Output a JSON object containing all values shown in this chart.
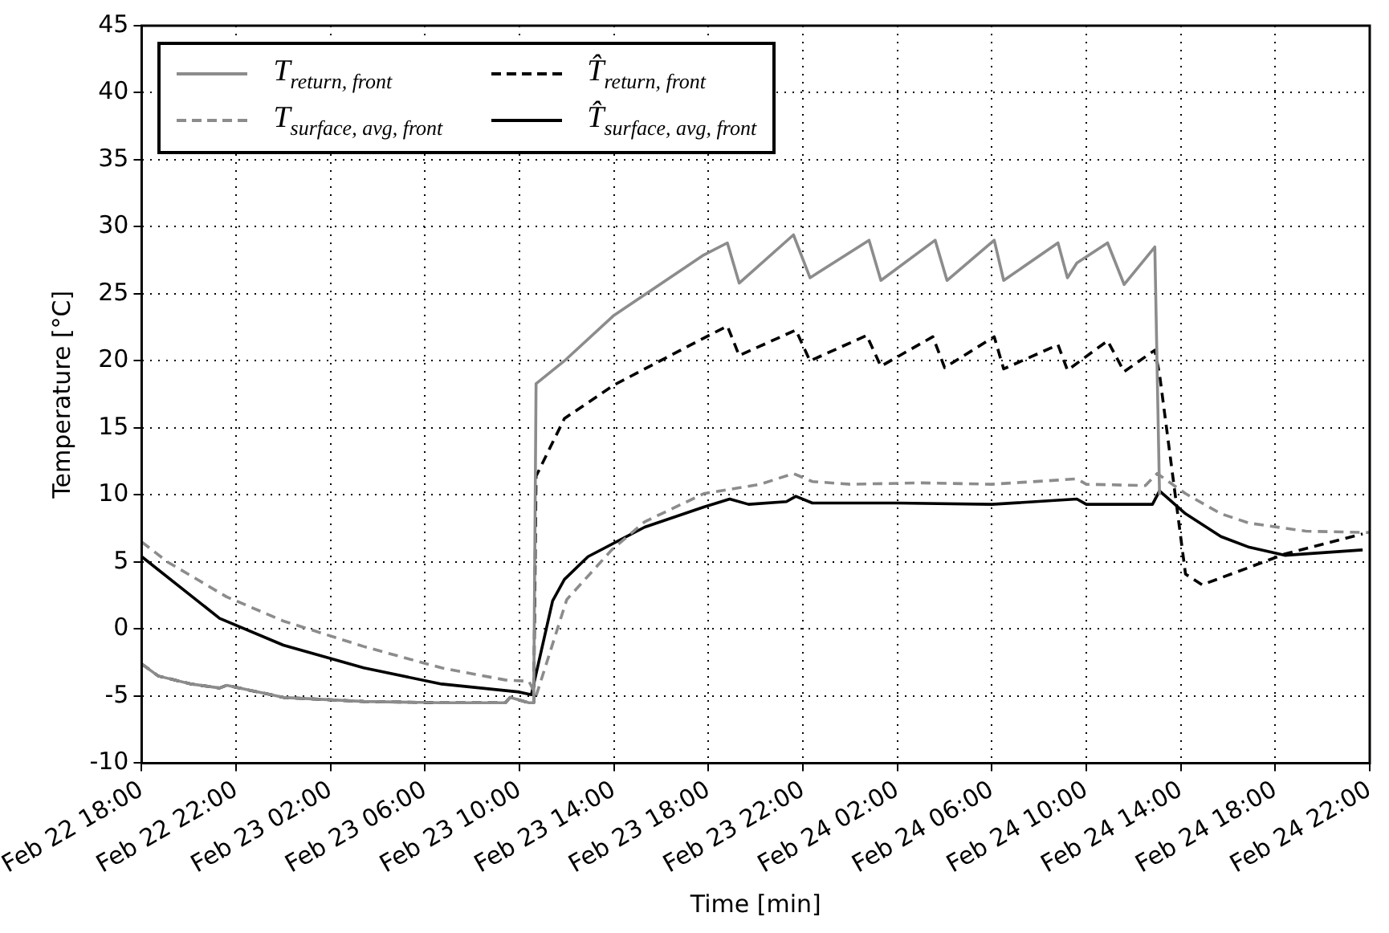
{
  "chart_data": {
    "type": "line",
    "xlabel": "Time [min]",
    "ylabel": "Temperature [°C]",
    "xlim": [
      "--02-22T18:00",
      "--02-24T22:00"
    ],
    "xticks": [
      {
        "value": "--02-22T18:00",
        "label": "Feb 22 18:00"
      },
      {
        "value": "--02-22T22:00",
        "label": "Feb 22 22:00"
      },
      {
        "value": "--02-23T02:00",
        "label": "Feb 23 02:00"
      },
      {
        "value": "--02-23T06:00",
        "label": "Feb 23 06:00"
      },
      {
        "value": "--02-23T10:00",
        "label": "Feb 23 10:00"
      },
      {
        "value": "--02-23T14:00",
        "label": "Feb 23 14:00"
      },
      {
        "value": "--02-23T18:00",
        "label": "Feb 23 18:00"
      },
      {
        "value": "--02-23T22:00",
        "label": "Feb 23 22:00"
      },
      {
        "value": "--02-24T02:00",
        "label": "Feb 24 02:00"
      },
      {
        "value": "--02-24T06:00",
        "label": "Feb 24 06:00"
      },
      {
        "value": "--02-24T10:00",
        "label": "Feb 24 10:00"
      },
      {
        "value": "--02-24T14:00",
        "label": "Feb 24 14:00"
      },
      {
        "value": "--02-24T18:00",
        "label": "Feb 24 18:00"
      },
      {
        "value": "--02-24T22:00",
        "label": "Feb 24 22:00"
      }
    ],
    "ylim": [
      -10,
      45
    ],
    "yticks": [
      -10,
      -5,
      0,
      5,
      10,
      15,
      20,
      25,
      30,
      35,
      40,
      45
    ],
    "grid": true,
    "legend": "top left",
    "series": [
      {
        "name": "T$_{return, front}$",
        "color": "#8c8c8c",
        "line_style": "solid",
        "x": [
          "--02-22T18:00",
          "--02-22T18:42",
          "--02-22T20:06",
          "--02-22T21:18",
          "--02-22T21:36",
          "--02-23T00:00",
          "--02-23T03:24",
          "--02-23T06:42",
          "--02-23T09:24",
          "--02-23T09:36",
          "--02-23T10:24",
          "--02-23T10:36",
          "--02-23T10:42",
          "--02-23T11:54",
          "--02-23T14:00",
          "--02-23T17:48",
          "--02-23T18:48",
          "--02-23T19:18",
          "--02-23T21:36",
          "--02-23T22:18",
          "--02-24T00:48",
          "--02-24T01:18",
          "--02-24T03:36",
          "--02-24T04:06",
          "--02-24T06:06",
          "--02-24T06:30",
          "--02-24T08:48",
          "--02-24T09:12",
          "--02-24T09:36",
          "--02-24T10:54",
          "--02-24T11:36",
          "--02-24T12:54",
          "--02-24T13:06"
        ],
        "values": [
          -2.6,
          -3.5,
          -4.1,
          -4.4,
          -4.2,
          -5.1,
          -5.4,
          -5.5,
          -5.5,
          -5.1,
          -5.5,
          -5.5,
          18.3,
          20,
          23.4,
          27.9,
          28.8,
          25.8,
          29.4,
          26.2,
          29,
          26,
          29,
          26,
          29,
          26,
          28.8,
          26.2,
          27.3,
          28.8,
          25.7,
          28.5,
          10
        ]
      },
      {
        "name": "T$_{surface, avg, front}$",
        "color": "#8c8c8c",
        "line_style": "dashed",
        "x": [
          "--02-22T18:00",
          "--02-22T19:06",
          "--02-22T21:36",
          "--02-23T00:00",
          "--02-23T03:24",
          "--02-23T06:42",
          "--02-23T09:24",
          "--02-23T10:24",
          "--02-23T10:36",
          "--02-23T10:42",
          "--02-23T12:00",
          "--02-23T13:54",
          "--02-23T15:18",
          "--02-23T17:48",
          "--02-23T20:12",
          "--02-23T21:36",
          "--02-23T22:24",
          "--02-24T00:00",
          "--02-24T03:00",
          "--02-24T06:00",
          "--02-24T09:36",
          "--02-24T10:00",
          "--02-24T12:30",
          "--02-24T13:00",
          "--02-24T14:12",
          "--02-24T15:42",
          "--02-24T16:54",
          "--02-24T19:18",
          "--02-24T22:00"
        ],
        "values": [
          6.5,
          5.0,
          2.4,
          0.6,
          -1.3,
          -2.9,
          -3.8,
          -3.9,
          -4.6,
          -5,
          2.2,
          5.9,
          8.0,
          10.1,
          10.8,
          11.6,
          11.0,
          10.8,
          10.9,
          10.8,
          11.2,
          10.8,
          10.7,
          11.6,
          10.1,
          8.6,
          7.9,
          7.3,
          7.2
        ]
      },
      {
        "name": "T̂$_{return, front}$",
        "color": "#000000",
        "line_style": "dashed",
        "x": [
          "--02-22T18:00",
          "--02-22T18:42",
          "--02-22T20:06",
          "--02-22T21:18",
          "--02-22T21:36",
          "--02-23T00:00",
          "--02-23T03:24",
          "--02-23T06:42",
          "--02-23T09:24",
          "--02-23T09:36",
          "--02-23T10:24",
          "--02-23T10:36",
          "--02-23T10:42",
          "--02-23T11:54",
          "--02-23T14:00",
          "--02-23T17:48",
          "--02-23T18:48",
          "--02-23T19:18",
          "--02-23T21:42",
          "--02-23T22:18",
          "--02-24T00:42",
          "--02-24T01:18",
          "--02-24T03:30",
          "--02-24T04:00",
          "--02-24T06:06",
          "--02-24T06:30",
          "--02-24T08:48",
          "--02-24T09:12",
          "--02-24T10:54",
          "--02-24T11:36",
          "--02-24T12:54",
          "--02-24T13:06",
          "--02-24T14:12",
          "--02-24T14:54",
          "--02-24T16:54",
          "--02-24T18:24",
          "--02-24T21:42"
        ],
        "values": [
          -2.6,
          -3.5,
          -4.1,
          -4.4,
          -4.2,
          -5.1,
          -5.4,
          -5.5,
          -5.5,
          -5.1,
          -5.5,
          -5.5,
          11.4,
          15.7,
          18.2,
          21.7,
          22.6,
          20.4,
          22.3,
          20,
          21.9,
          19.6,
          21.8,
          19.5,
          21.8,
          19.4,
          21.2,
          19.3,
          21.5,
          19.2,
          20.8,
          19,
          4.1,
          3.3,
          4.6,
          5.6,
          7.1
        ]
      },
      {
        "name": "T̂$_{surface, avg, front}$",
        "color": "#000000",
        "line_style": "solid",
        "x": [
          "--02-22T18:00",
          "--02-22T21:18",
          "--02-23T00:00",
          "--02-23T03:24",
          "--02-23T06:42",
          "--02-23T10:00",
          "--02-23T10:30",
          "--02-23T11:24",
          "--02-23T11:54",
          "--02-23T12:54",
          "--02-23T15:18",
          "--02-23T17:48",
          "--02-23T18:54",
          "--02-23T19:42",
          "--02-23T21:18",
          "--02-23T21:42",
          "--02-23T22:24",
          "--02-24T02:00",
          "--02-24T06:00",
          "--02-24T09:36",
          "--02-24T10:00",
          "--02-24T12:48",
          "--02-24T13:06",
          "--02-24T14:12",
          "--02-24T15:42",
          "--02-24T16:54",
          "--02-24T18:24",
          "--02-24T21:42"
        ],
        "values": [
          5.4,
          0.8,
          -1.2,
          -2.9,
          -4.1,
          -4.7,
          -4.9,
          2.1,
          3.7,
          5.4,
          7.6,
          9.1,
          9.7,
          9.3,
          9.5,
          9.9,
          9.4,
          9.4,
          9.3,
          9.7,
          9.3,
          9.3,
          10.3,
          8.6,
          6.9,
          6.1,
          5.5,
          5.9
        ]
      }
    ]
  }
}
